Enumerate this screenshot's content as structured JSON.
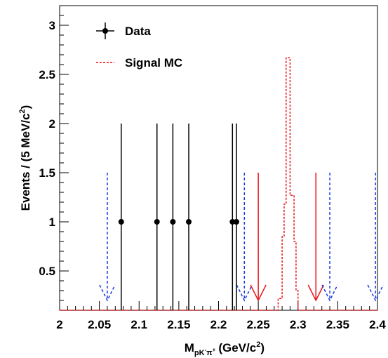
{
  "chart_data": {
    "type": "scatter",
    "xlabel": {
      "main": "M",
      "sub": "pK",
      "sub_sup1": "-",
      "sub_mid": "π",
      "sub_sup2": "+",
      "units": "(GeV/c",
      "units_sup": "2",
      "units_end": ")"
    },
    "ylabel": {
      "main": "Events / (5 MeV/c",
      "sup": "2",
      "end": ")"
    },
    "xlim": [
      2.0,
      2.4
    ],
    "ylim": [
      0.1,
      3.2
    ],
    "x_ticks": [
      {
        "value": 2.0,
        "label": "2"
      },
      {
        "value": 2.05,
        "label": "2.05"
      },
      {
        "value": 2.1,
        "label": "2.1"
      },
      {
        "value": 2.15,
        "label": "2.15"
      },
      {
        "value": 2.2,
        "label": "2.2"
      },
      {
        "value": 2.25,
        "label": "2.25"
      },
      {
        "value": 2.3,
        "label": "2.3"
      },
      {
        "value": 2.35,
        "label": "2.35"
      },
      {
        "value": 2.4,
        "label": "2.4"
      }
    ],
    "y_ticks": [
      {
        "value": 0.5,
        "label": "0.5"
      },
      {
        "value": 1.0,
        "label": "1"
      },
      {
        "value": 1.5,
        "label": "1.5"
      },
      {
        "value": 2.0,
        "label": "2"
      },
      {
        "value": 2.5,
        "label": "2.5"
      },
      {
        "value": 3.0,
        "label": "3"
      }
    ],
    "legend": [
      {
        "name": "Data",
        "style": "marker",
        "color": "#000000"
      },
      {
        "name": "Signal MC",
        "style": "dashed",
        "color": "#e8141c"
      }
    ],
    "data_points": [
      {
        "x": 2.0775,
        "y": 1,
        "err_low": 1,
        "err_high": 1
      },
      {
        "x": 2.1225,
        "y": 1,
        "err_low": 1,
        "err_high": 1
      },
      {
        "x": 2.1425,
        "y": 1,
        "err_low": 1,
        "err_high": 1
      },
      {
        "x": 2.1625,
        "y": 1,
        "err_low": 1,
        "err_high": 1
      },
      {
        "x": 2.2175,
        "y": 1,
        "err_low": 1,
        "err_high": 1
      },
      {
        "x": 2.2225,
        "y": 1,
        "err_low": 1,
        "err_high": 1
      }
    ],
    "signal_mc": {
      "color": "#e8141c",
      "bins": [
        {
          "x0": 2.0,
          "x1": 2.275,
          "y": 0.1
        },
        {
          "x0": 2.275,
          "x1": 2.28,
          "y": 0.22
        },
        {
          "x0": 2.28,
          "x1": 2.2825,
          "y": 0.85
        },
        {
          "x0": 2.2825,
          "x1": 2.285,
          "y": 1.18
        },
        {
          "x0": 2.285,
          "x1": 2.29,
          "y": 2.67
        },
        {
          "x0": 2.29,
          "x1": 2.2925,
          "y": 1.27
        },
        {
          "x0": 2.2925,
          "x1": 2.295,
          "y": 1.27
        },
        {
          "x0": 2.295,
          "x1": 2.2975,
          "y": 0.8
        },
        {
          "x0": 2.2975,
          "x1": 2.3,
          "y": 0.3
        },
        {
          "x0": 2.3,
          "x1": 2.4,
          "y": 0.1
        }
      ]
    },
    "arrows": [
      {
        "x": 2.06,
        "y_top": 1.5,
        "y_tip": 0.2,
        "color": "#1a3ae0",
        "style": "dashed"
      },
      {
        "x": 2.2325,
        "y_top": 1.5,
        "y_tip": 0.2,
        "color": "#1a3ae0",
        "style": "dashed"
      },
      {
        "x": 2.25,
        "y_top": 1.5,
        "y_tip": 0.2,
        "color": "#e8141c",
        "style": "solid"
      },
      {
        "x": 2.3225,
        "y_top": 1.5,
        "y_tip": 0.2,
        "color": "#e8141c",
        "style": "solid"
      },
      {
        "x": 2.34,
        "y_top": 1.5,
        "y_tip": 0.2,
        "color": "#1a3ae0",
        "style": "dashed"
      },
      {
        "x": 2.3975,
        "y_top": 1.5,
        "y_tip": 0.2,
        "color": "#1a3ae0",
        "style": "dashed"
      }
    ]
  }
}
